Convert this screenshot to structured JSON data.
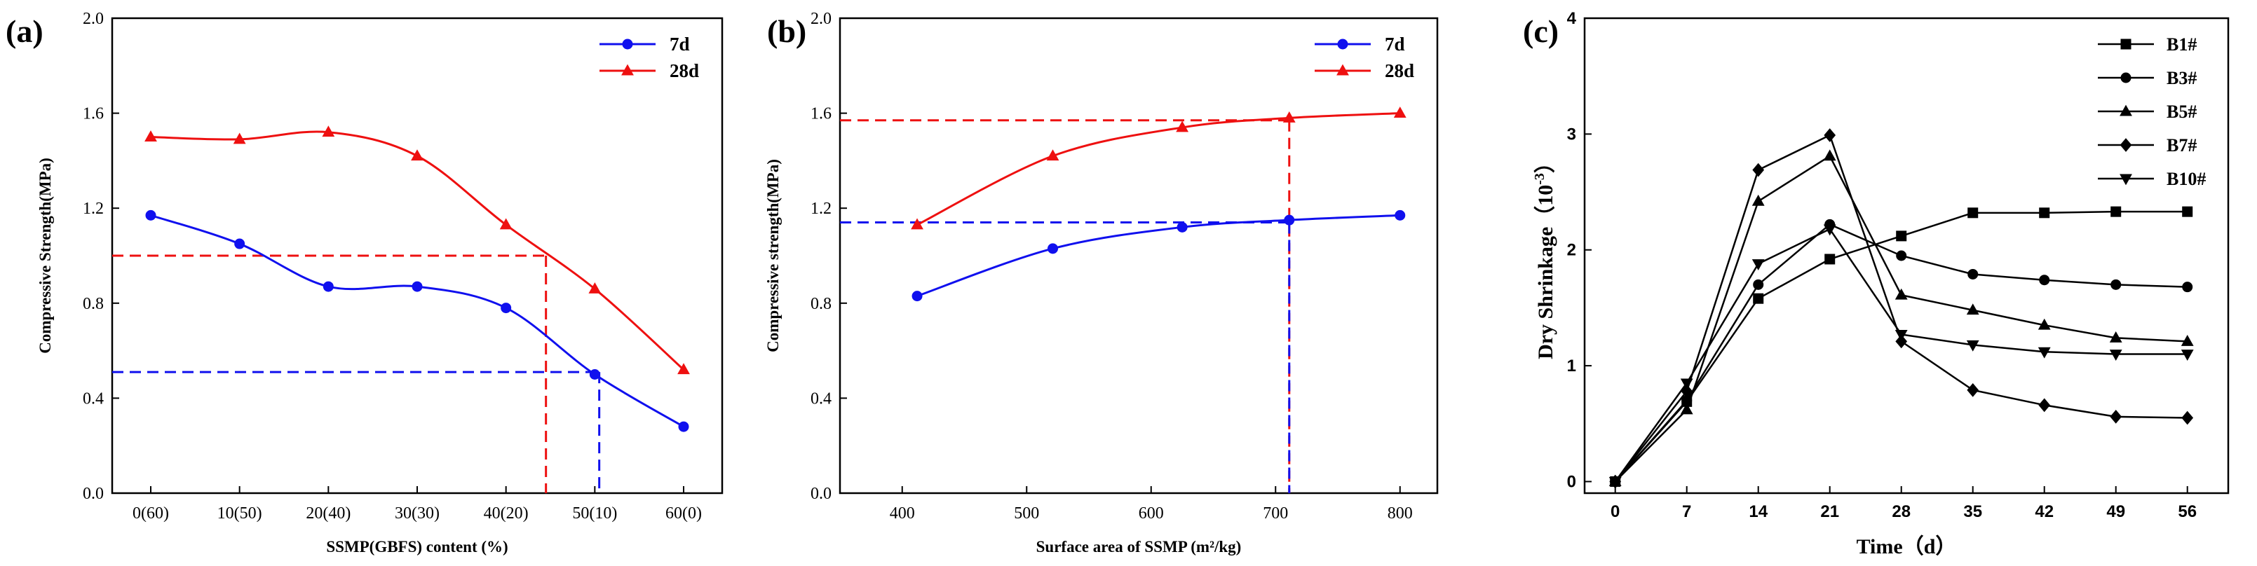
{
  "chart_data": [
    {
      "type": "line",
      "panel_label": "(a)",
      "xlabel": "SSMP(GBFS) content (%)",
      "ylabel": "Compressive Strength(MPa)",
      "categories": [
        "0(60)",
        "10(50)",
        "20(40)",
        "30(30)",
        "40(20)",
        "50(10)",
        "60(0)"
      ],
      "y_ticks": [
        "0.0",
        "0.4",
        "0.8",
        "1.2",
        "1.6",
        "2.0"
      ],
      "ylim": [
        0,
        2.0
      ],
      "series": [
        {
          "name": "7d",
          "color": "#1010ee",
          "marker": "circle",
          "values": [
            1.17,
            1.05,
            0.87,
            0.87,
            0.78,
            0.5,
            0.28
          ]
        },
        {
          "name": "28d",
          "color": "#ee1010",
          "marker": "triangle",
          "values": [
            1.5,
            1.49,
            1.52,
            1.42,
            1.13,
            0.86,
            0.52
          ]
        }
      ],
      "reference_lines": [
        {
          "series": "28d",
          "y": 1.0,
          "x_index": 4.45
        },
        {
          "series": "7d",
          "y": 0.51,
          "x_index": 5.05
        }
      ],
      "legend_position": "top-right"
    },
    {
      "type": "line",
      "panel_label": "(b)",
      "xlabel": "Surface area of SSMP",
      "xlabel_unit": "m²/kg",
      "ylabel": "Compressive strength(MPa)",
      "x_ticks": [
        "400",
        "500",
        "600",
        "700",
        "800"
      ],
      "xlim": [
        350,
        830
      ],
      "y_ticks": [
        "0.0",
        "0.4",
        "0.8",
        "1.2",
        "1.6",
        "2.0"
      ],
      "ylim": [
        0,
        2.0
      ],
      "series": [
        {
          "name": "7d",
          "color": "#1010ee",
          "marker": "circle",
          "x": [
            412,
            521,
            625,
            711,
            800
          ],
          "values": [
            0.83,
            1.03,
            1.12,
            1.15,
            1.17
          ]
        },
        {
          "name": "28d",
          "color": "#ee1010",
          "marker": "triangle",
          "x": [
            412,
            521,
            625,
            711,
            800
          ],
          "values": [
            1.13,
            1.42,
            1.54,
            1.58,
            1.6
          ]
        }
      ],
      "reference_lines": [
        {
          "series": "28d",
          "y": 1.57,
          "x": 711
        },
        {
          "series": "7d",
          "y": 1.14,
          "x": 711
        }
      ],
      "legend_position": "top-right"
    },
    {
      "type": "line",
      "panel_label": "(c)",
      "xlabel": "Time",
      "xlabel_unit": "d",
      "ylabel": "Dry Shrinkage",
      "ylabel_unit": "10",
      "ylabel_exp": "-3",
      "x": [
        0,
        7,
        14,
        21,
        28,
        35,
        42,
        49,
        56
      ],
      "x_ticks": [
        "0",
        "7",
        "14",
        "21",
        "28",
        "35",
        "42",
        "49",
        "56"
      ],
      "xlim": [
        -3,
        60
      ],
      "y_ticks": [
        "0",
        "1",
        "2",
        "3",
        "4"
      ],
      "ylim": [
        -0.1,
        4
      ],
      "series": [
        {
          "name": "B1#",
          "color": "#000000",
          "marker": "square",
          "values": [
            0.0,
            0.69,
            1.58,
            1.92,
            2.12,
            2.32,
            2.32,
            2.33,
            2.33
          ]
        },
        {
          "name": "B3#",
          "color": "#000000",
          "marker": "circle",
          "values": [
            0.0,
            0.7,
            1.7,
            2.22,
            1.95,
            1.79,
            1.74,
            1.7,
            1.68
          ]
        },
        {
          "name": "B5#",
          "color": "#000000",
          "marker": "triangle",
          "values": [
            0.0,
            0.62,
            2.42,
            2.81,
            1.61,
            1.48,
            1.35,
            1.24,
            1.21
          ]
        },
        {
          "name": "B7#",
          "color": "#000000",
          "marker": "diamond",
          "values": [
            0.0,
            0.78,
            2.69,
            2.99,
            1.21,
            0.79,
            0.66,
            0.56,
            0.55
          ]
        },
        {
          "name": "B10#",
          "color": "#000000",
          "marker": "triangle-down",
          "values": [
            0.0,
            0.85,
            1.88,
            2.18,
            1.27,
            1.18,
            1.12,
            1.1,
            1.1
          ]
        }
      ],
      "legend_position": "top-right"
    }
  ]
}
